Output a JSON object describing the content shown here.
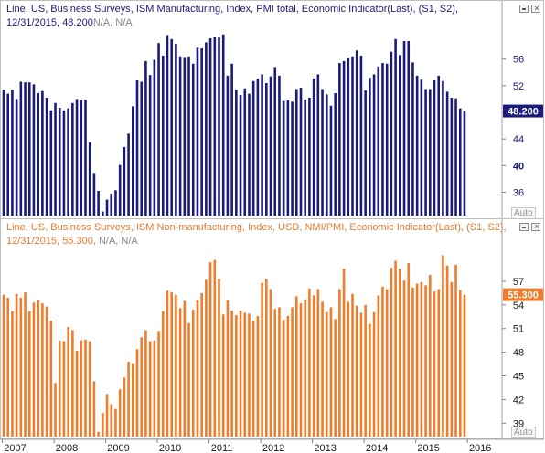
{
  "panes": [
    {
      "title_line1": "Line, US, Business Surveys, ISM Manufacturing, Index, PMI total, Economic Indicator(Last), (S1, S2),",
      "title_line2_date": "12/31/2015,",
      "title_line2_value": "48.200",
      "title_line2_na": "N/A, N/A",
      "last_value_label": "48.200",
      "auto_label": "Auto",
      "minimize_icon": "minimize-icon",
      "close_icon": "close-icon"
    },
    {
      "title_line1": "Line, US, Business Surveys, ISM Non-manufacturing, Index, USD, NMI/PMI, Economic Indicator(Last), (S1, S2),",
      "title_line2_date": "12/31/2015,",
      "title_line2_value": "55.300,",
      "title_line2_na": "N/A, N/A",
      "last_value_label": "55.300",
      "auto_label": "Auto",
      "minimize_icon": "minimize-icon",
      "close_icon": "close-icon"
    }
  ],
  "x_axis": {
    "tick_labels": [
      "2007",
      "2008",
      "2009",
      "2010",
      "2011",
      "2012",
      "2013",
      "2014",
      "2015",
      "2016"
    ]
  },
  "chart_data": [
    {
      "type": "bar",
      "title": "Line, US, Business Surveys, ISM Manufacturing, Index, PMI total, Economic Indicator(Last), (S1, S2)",
      "color": "#1a1a7a",
      "start": "2007-01",
      "frequency": "monthly",
      "yticks": [
        36,
        40,
        44,
        48,
        52,
        56
      ],
      "ylim": [
        32.5,
        59.8
      ],
      "last_value": 48.2,
      "values": [
        51.4,
        50.8,
        51.4,
        50.0,
        52.6,
        52.5,
        52.5,
        52.2,
        50.9,
        51.2,
        50.2,
        48.3,
        49.4,
        48.7,
        48.3,
        48.6,
        49.4,
        50.0,
        49.8,
        49.9,
        43.5,
        38.9,
        36.2,
        33.1,
        34.9,
        35.8,
        36.3,
        40.1,
        42.8,
        44.8,
        48.9,
        52.8,
        52.6,
        55.7,
        53.6,
        55.9,
        58.4,
        56.5,
        59.6,
        59.0,
        58.3,
        56.4,
        56.3,
        56.4,
        55.3,
        57.7,
        57.6,
        58.5,
        59.1,
        59.3,
        59.3,
        59.7,
        53.5,
        55.3,
        51.4,
        50.6,
        51.6,
        50.8,
        52.7,
        53.1,
        53.7,
        52.4,
        53.4,
        54.8,
        53.5,
        49.7,
        49.8,
        49.6,
        51.5,
        51.7,
        49.9,
        50.2,
        53.1,
        53.7,
        51.5,
        50.7,
        49.0,
        50.9,
        55.4,
        55.7,
        56.2,
        56.4,
        57.3,
        56.5,
        51.3,
        53.2,
        53.7,
        54.9,
        55.4,
        55.3,
        57.1,
        59.0,
        56.6,
        58.7,
        58.7,
        55.5,
        53.5,
        52.9,
        51.5,
        51.5,
        52.8,
        53.5,
        52.7,
        51.1,
        50.2,
        50.1,
        48.6,
        48.2
      ]
    },
    {
      "type": "bar",
      "title": "Line, US, Business Surveys, ISM Non-manufacturing, Index, USD, NMI/PMI, Economic Indicator(Last), (S1, S2)",
      "color": "#f07d2c",
      "start": "2007-01",
      "frequency": "monthly",
      "yticks": [
        39,
        42,
        45,
        48,
        51,
        54,
        57
      ],
      "ylim": [
        37.3,
        60.7
      ],
      "last_value": 55.3,
      "values": [
        55.3,
        54.9,
        53.2,
        55.4,
        54.9,
        55.6,
        53.2,
        54.3,
        54.6,
        54.2,
        53.8,
        52.0,
        44.1,
        49.5,
        49.4,
        51.2,
        50.8,
        48.2,
        49.5,
        49.6,
        49.4,
        44.3,
        37.9,
        40.3,
        42.7,
        41.4,
        40.8,
        43.3,
        44.8,
        46.8,
        46.5,
        48.4,
        49.9,
        50.8,
        49.4,
        49.5,
        50.7,
        53.2,
        55.8,
        55.6,
        55.3,
        53.6,
        54.5,
        51.7,
        53.4,
        54.6,
        55.5,
        57.2,
        59.4,
        59.7,
        57.3,
        52.8,
        54.6,
        53.3,
        52.7,
        53.3,
        53.0,
        52.9,
        52.0,
        52.6,
        56.8,
        57.3,
        56.0,
        53.5,
        53.7,
        52.1,
        52.6,
        53.7,
        55.1,
        54.2,
        54.7,
        56.1,
        55.2,
        56.0,
        54.4,
        53.1,
        53.7,
        52.2,
        56.0,
        58.6,
        54.4,
        55.4,
        53.9,
        53.0,
        54.0,
        51.6,
        53.1,
        55.2,
        56.3,
        56.0,
        58.7,
        59.6,
        58.6,
        57.1,
        59.3,
        56.2,
        56.7,
        56.9,
        56.5,
        57.8,
        55.7,
        56.0,
        60.3,
        59.0,
        56.9,
        59.1,
        55.9,
        55.3
      ]
    }
  ]
}
